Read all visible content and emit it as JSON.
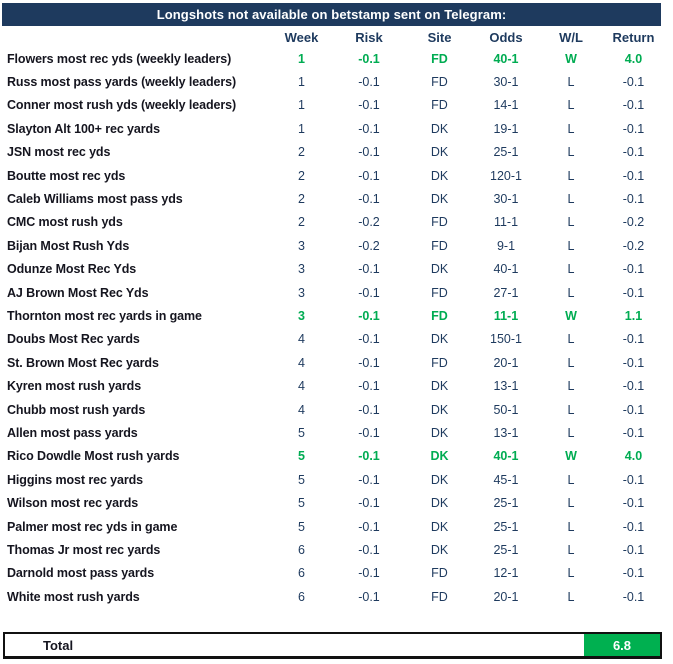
{
  "title": "Longshots not available on betstamp sent on Telegram:",
  "columns": {
    "week": "Week",
    "risk": "Risk",
    "site": "Site",
    "odds": "Odds",
    "wl": "W/L",
    "ret": "Return"
  },
  "rows": [
    {
      "name": "Flowers most rec yds (weekly leaders)",
      "week": "1",
      "risk": "-0.1",
      "site": "FD",
      "odds": "40-1",
      "wl": "W",
      "ret": "4.0",
      "win": true
    },
    {
      "name": "Russ most pass yards (weekly leaders)",
      "week": "1",
      "risk": "-0.1",
      "site": "FD",
      "odds": "30-1",
      "wl": "L",
      "ret": "-0.1",
      "win": false
    },
    {
      "name": "Conner most rush yds (weekly leaders)",
      "week": "1",
      "risk": "-0.1",
      "site": "FD",
      "odds": "14-1",
      "wl": "L",
      "ret": "-0.1",
      "win": false
    },
    {
      "name": "Slayton Alt 100+ rec yards",
      "week": "1",
      "risk": "-0.1",
      "site": "DK",
      "odds": "19-1",
      "wl": "L",
      "ret": "-0.1",
      "win": false
    },
    {
      "name": "JSN most rec yds",
      "week": "2",
      "risk": "-0.1",
      "site": "DK",
      "odds": "25-1",
      "wl": "L",
      "ret": "-0.1",
      "win": false
    },
    {
      "name": "Boutte most rec yds",
      "week": "2",
      "risk": "-0.1",
      "site": "DK",
      "odds": "120-1",
      "wl": "L",
      "ret": "-0.1",
      "win": false
    },
    {
      "name": "Caleb Williams most pass yds",
      "week": "2",
      "risk": "-0.1",
      "site": "DK",
      "odds": "30-1",
      "wl": "L",
      "ret": "-0.1",
      "win": false
    },
    {
      "name": "CMC most rush yds",
      "week": "2",
      "risk": "-0.2",
      "site": "FD",
      "odds": "11-1",
      "wl": "L",
      "ret": "-0.2",
      "win": false
    },
    {
      "name": "Bijan Most Rush Yds",
      "week": "3",
      "risk": "-0.2",
      "site": "FD",
      "odds": "9-1",
      "wl": "L",
      "ret": "-0.2",
      "win": false
    },
    {
      "name": "Odunze Most Rec Yds",
      "week": "3",
      "risk": "-0.1",
      "site": "DK",
      "odds": "40-1",
      "wl": "L",
      "ret": "-0.1",
      "win": false
    },
    {
      "name": "AJ Brown Most Rec Yds",
      "week": "3",
      "risk": "-0.1",
      "site": "FD",
      "odds": "27-1",
      "wl": "L",
      "ret": "-0.1",
      "win": false
    },
    {
      "name": "Thornton most rec yards in game",
      "week": "3",
      "risk": "-0.1",
      "site": "FD",
      "odds": "11-1",
      "wl": "W",
      "ret": "1.1",
      "win": true
    },
    {
      "name": "Doubs Most Rec yards",
      "week": "4",
      "risk": "-0.1",
      "site": "DK",
      "odds": "150-1",
      "wl": "L",
      "ret": "-0.1",
      "win": false
    },
    {
      "name": "St. Brown Most Rec yards",
      "week": "4",
      "risk": "-0.1",
      "site": "FD",
      "odds": "20-1",
      "wl": "L",
      "ret": "-0.1",
      "win": false
    },
    {
      "name": "Kyren most rush yards",
      "week": "4",
      "risk": "-0.1",
      "site": "DK",
      "odds": "13-1",
      "wl": "L",
      "ret": "-0.1",
      "win": false
    },
    {
      "name": "Chubb most rush yards",
      "week": "4",
      "risk": "-0.1",
      "site": "DK",
      "odds": "50-1",
      "wl": "L",
      "ret": "-0.1",
      "win": false
    },
    {
      "name": "Allen most pass yards",
      "week": "5",
      "risk": "-0.1",
      "site": "DK",
      "odds": "13-1",
      "wl": "L",
      "ret": "-0.1",
      "win": false
    },
    {
      "name": "Rico Dowdle Most rush yards",
      "week": "5",
      "risk": "-0.1",
      "site": "DK",
      "odds": "40-1",
      "wl": "W",
      "ret": "4.0",
      "win": true
    },
    {
      "name": "Higgins most rec yards",
      "week": "5",
      "risk": "-0.1",
      "site": "DK",
      "odds": "45-1",
      "wl": "L",
      "ret": "-0.1",
      "win": false
    },
    {
      "name": "Wilson most rec yards",
      "week": "5",
      "risk": "-0.1",
      "site": "DK",
      "odds": "25-1",
      "wl": "L",
      "ret": "-0.1",
      "win": false
    },
    {
      "name": "Palmer most rec yds in game",
      "week": "5",
      "risk": "-0.1",
      "site": "DK",
      "odds": "25-1",
      "wl": "L",
      "ret": "-0.1",
      "win": false
    },
    {
      "name": "Thomas Jr most rec yards",
      "week": "6",
      "risk": "-0.1",
      "site": "DK",
      "odds": "25-1",
      "wl": "L",
      "ret": "-0.1",
      "win": false
    },
    {
      "name": "Darnold most pass yards",
      "week": "6",
      "risk": "-0.1",
      "site": "FD",
      "odds": "12-1",
      "wl": "L",
      "ret": "-0.1",
      "win": false
    },
    {
      "name": "White most rush yards",
      "week": "6",
      "risk": "-0.1",
      "site": "FD",
      "odds": "20-1",
      "wl": "L",
      "ret": "-0.1",
      "win": false
    }
  ],
  "total": {
    "label": "Total",
    "value": "6.8"
  },
  "colors": {
    "navy": "#1E3A5E",
    "win_green": "#00AC52",
    "total_green": "#00B050",
    "border_black": "#111111"
  }
}
